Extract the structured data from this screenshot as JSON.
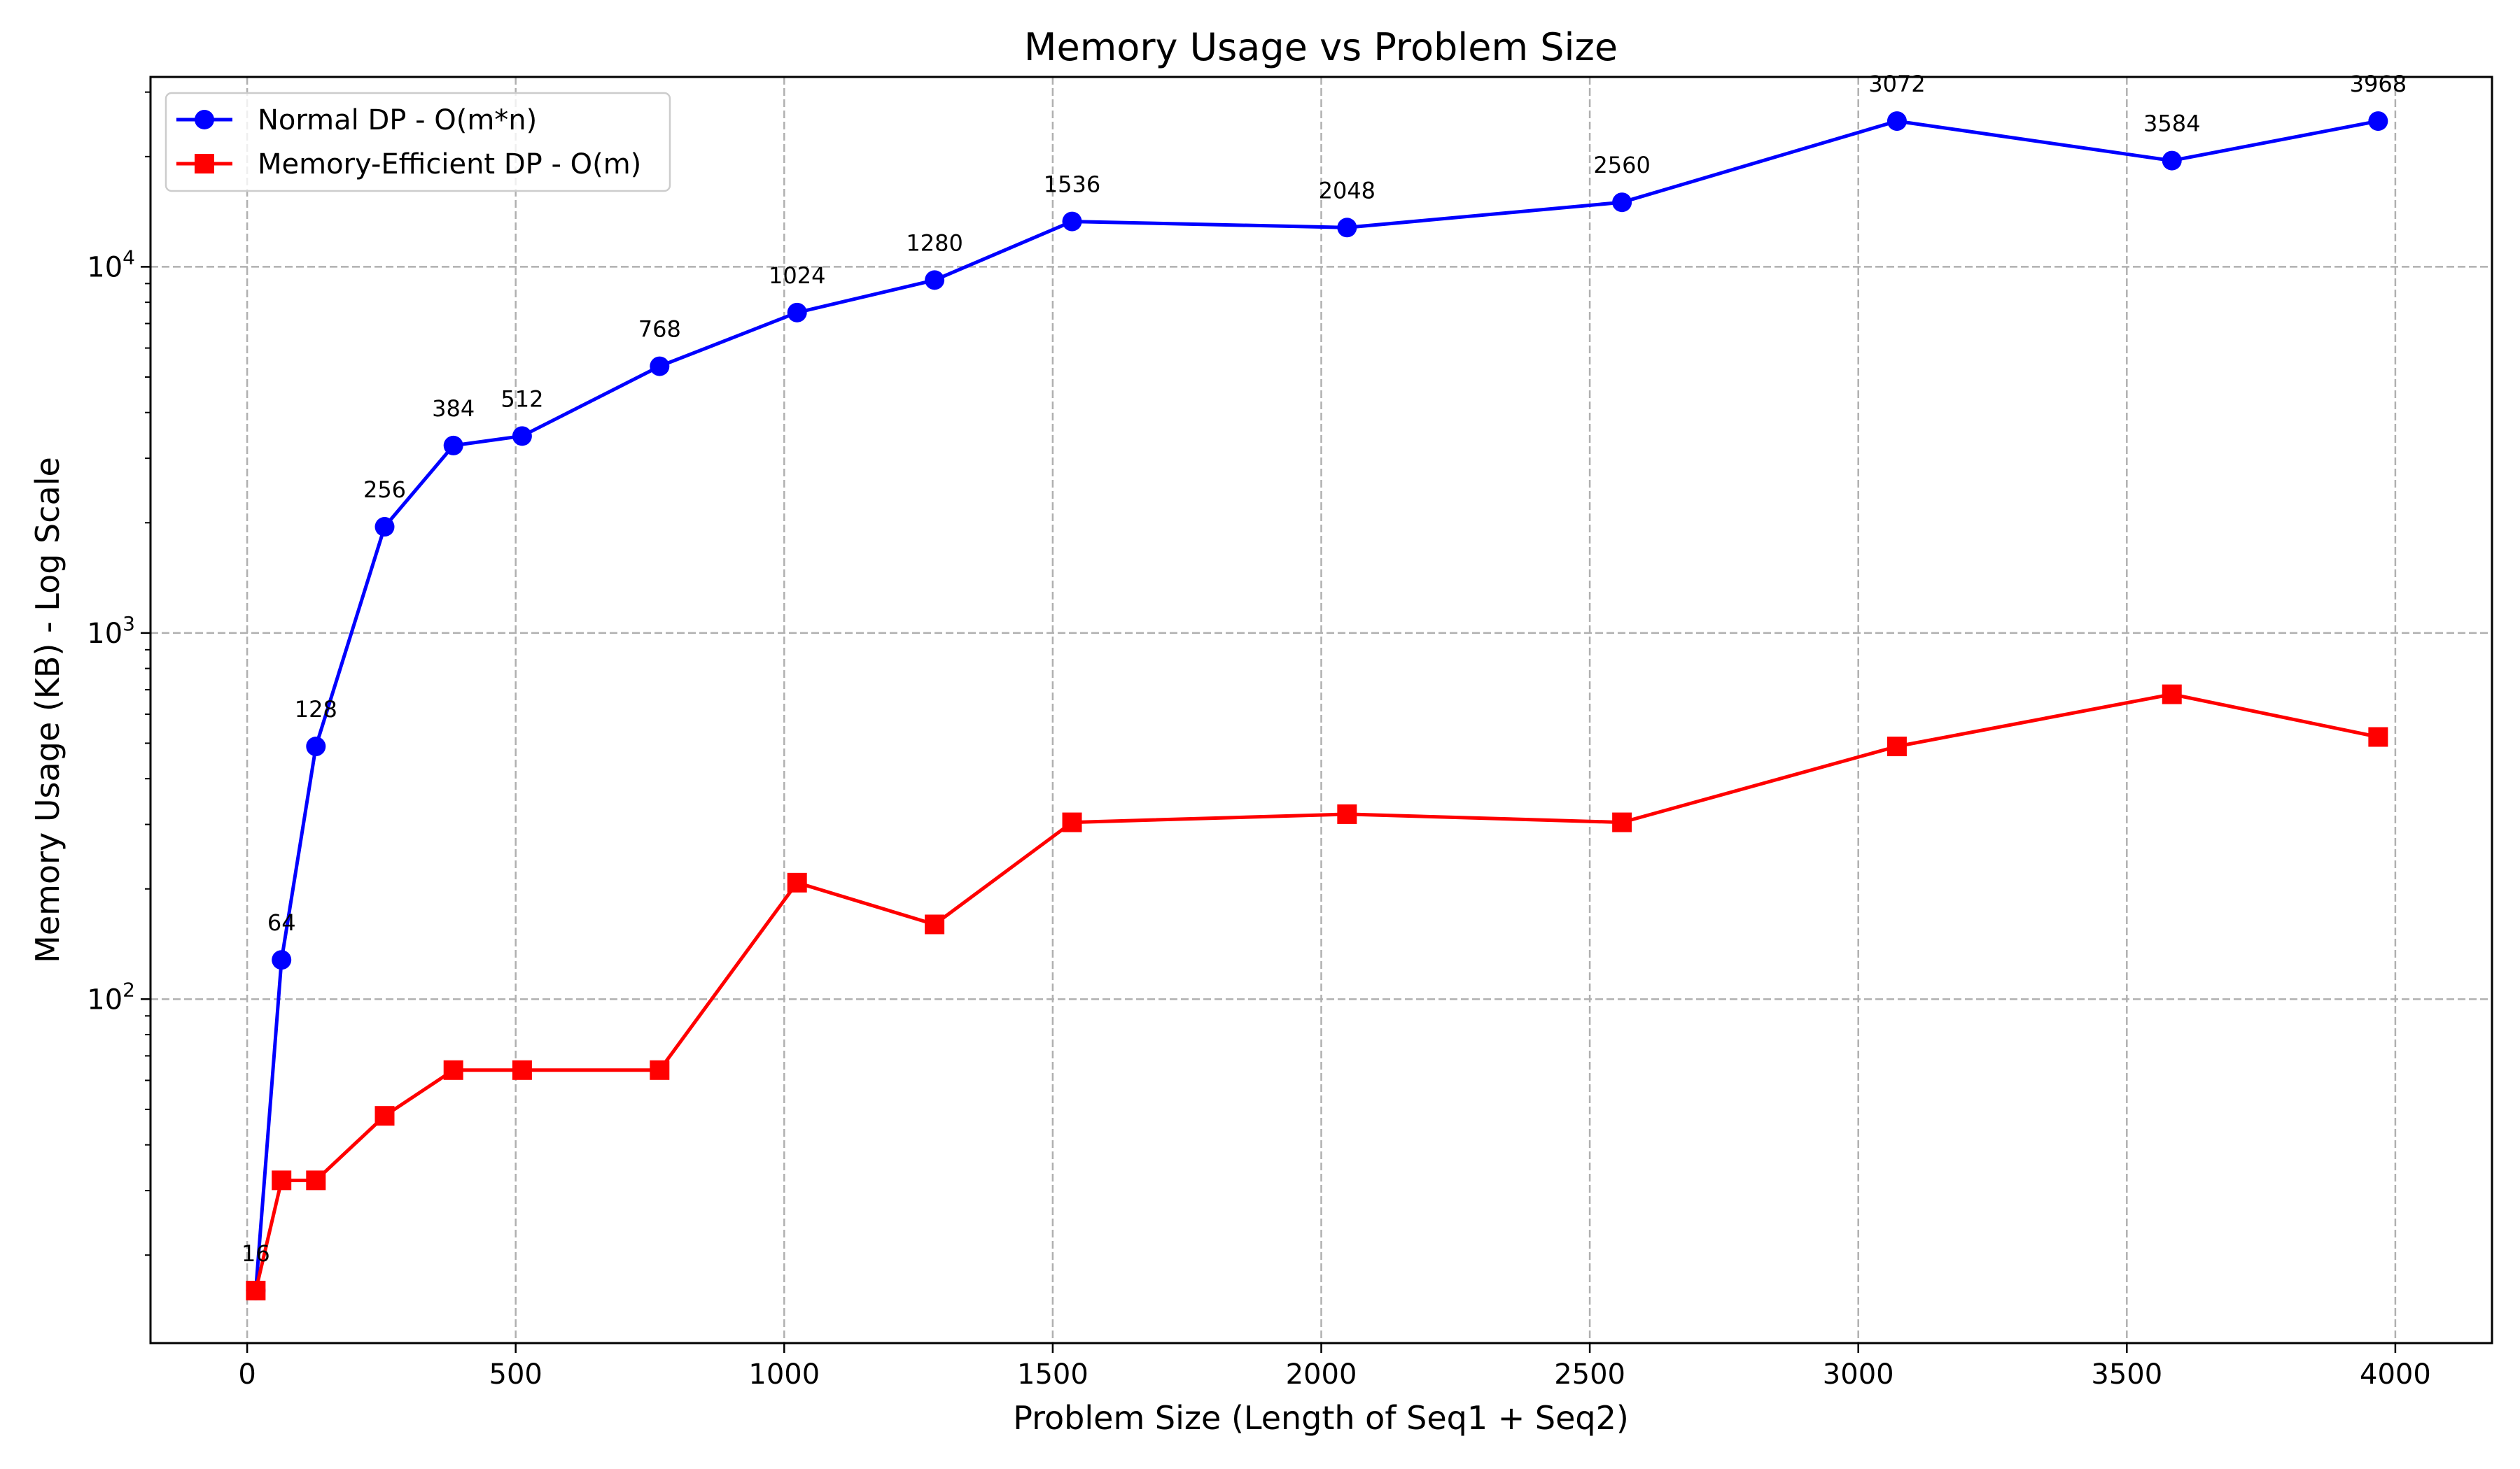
{
  "chart_data": {
    "type": "line",
    "title": "Memory Usage vs Problem Size",
    "xlabel": "Problem Size (Length of Seq1 + Seq2)",
    "ylabel": "Memory Usage (KB) - Log Scale",
    "yscale": "log",
    "xlim": [
      -180,
      4180
    ],
    "ylim": [
      11.5,
      33000
    ],
    "xticks": [
      0,
      500,
      1000,
      1500,
      2000,
      2500,
      3000,
      3500,
      4000
    ],
    "xtick_labels": [
      "0",
      "500",
      "1000",
      "1500",
      "2000",
      "2500",
      "3000",
      "3500",
      "4000"
    ],
    "yticks": [
      100,
      1000,
      10000
    ],
    "ytick_labels": [
      {
        "base": "10",
        "exp": "2"
      },
      {
        "base": "10",
        "exp": "3"
      },
      {
        "base": "10",
        "exp": "4"
      }
    ],
    "grid": true,
    "legend_position": "top-left",
    "x": [
      16,
      64,
      128,
      256,
      384,
      512,
      768,
      1024,
      1280,
      1536,
      2048,
      2560,
      3072,
      3584,
      3968
    ],
    "point_labels": [
      "16",
      "64",
      "128",
      "256",
      "384",
      "512",
      "768",
      "1024",
      "1280",
      "1536",
      "2048",
      "2560",
      "3072",
      "3584",
      "3968"
    ],
    "series": [
      {
        "name": "Normal DP - O(m*n)",
        "color": "#0000ff",
        "marker": "circle",
        "values": [
          16,
          128,
          490,
          1950,
          3250,
          3450,
          5350,
          7500,
          9200,
          13300,
          12800,
          15000,
          25000,
          19500,
          25000
        ]
      },
      {
        "name": "Memory-Efficient DP - O(m)",
        "color": "#ff0000",
        "marker": "square",
        "values": [
          16,
          32,
          32,
          48,
          64,
          64,
          64,
          208,
          160,
          304,
          320,
          304,
          490,
          680,
          520
        ]
      }
    ]
  }
}
